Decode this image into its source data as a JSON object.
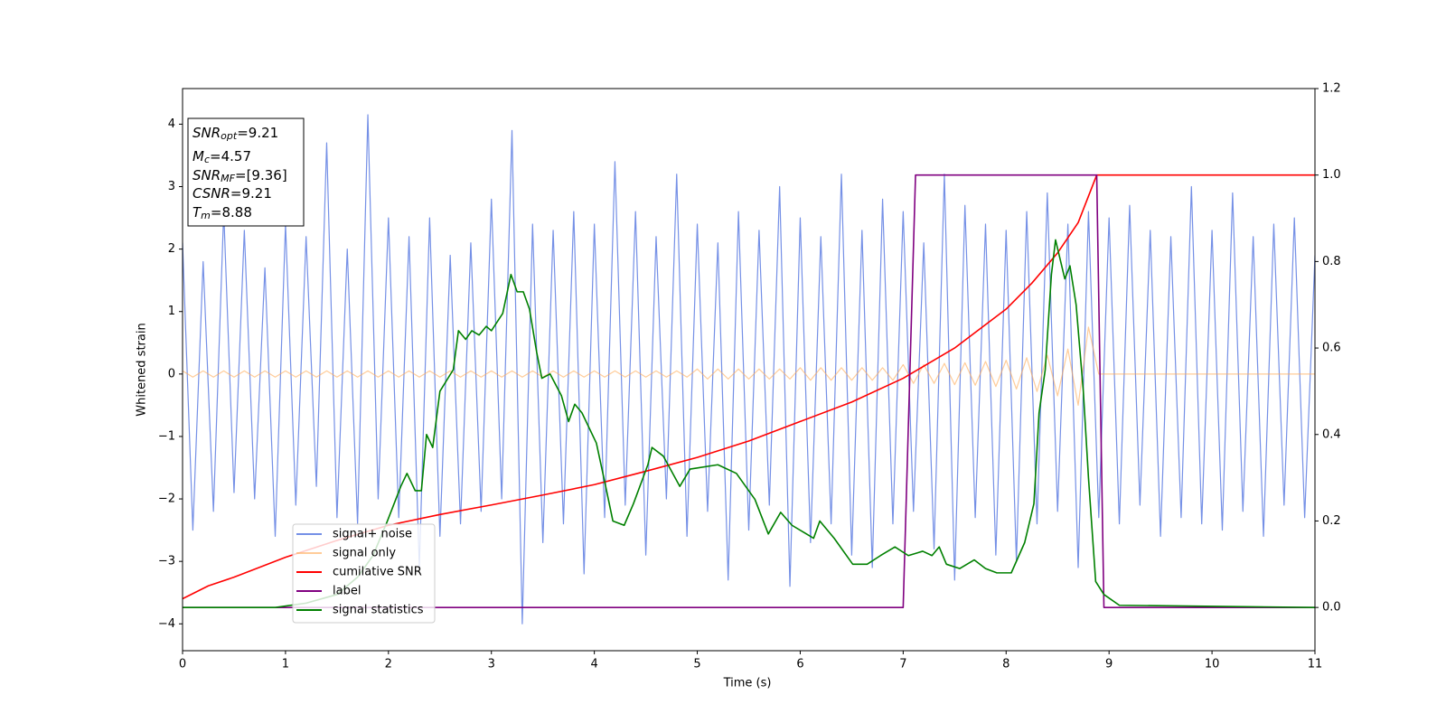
{
  "chart_data": {
    "type": "line",
    "xlabel": "Time (s)",
    "ylabel": "Whitened strain",
    "xlim": [
      0,
      11
    ],
    "xticks": [
      0,
      1,
      2,
      3,
      4,
      5,
      6,
      7,
      8,
      9,
      10,
      11
    ],
    "ylim": [
      -4.43,
      4.57
    ],
    "yticks": [
      {
        "value": -4,
        "label": "−4"
      },
      {
        "value": -3,
        "label": "−3"
      },
      {
        "value": -2,
        "label": "−2"
      },
      {
        "value": -1,
        "label": "−1"
      },
      0,
      1,
      2,
      3,
      4
    ],
    "y2lim": [
      -0.1,
      1.2
    ],
    "y2ticks": [
      {
        "value": 0,
        "label": "0.0"
      },
      0.2,
      0.4,
      0.6,
      0.8,
      {
        "value": 1,
        "label": "1.0"
      },
      1.2
    ],
    "legend": "lower left",
    "annotation": [
      {
        "symbol": "SNR",
        "subscript": "opt",
        "text": "=9.21"
      },
      {
        "symbol": "M",
        "subscript": "c",
        "text": "=4.57"
      },
      {
        "symbol": "SNR",
        "subscript": "MF",
        "text": "=[9.36]"
      },
      {
        "symbol": "CSNR",
        "text": "=9.21"
      },
      {
        "symbol": "T",
        "subscript": "m",
        "text": "=8.88"
      }
    ],
    "x": [
      0,
      0.1,
      0.2,
      0.3,
      0.4,
      0.5,
      0.6,
      0.7,
      0.8,
      0.9,
      1,
      1.1,
      1.2,
      1.3,
      1.4,
      1.5,
      1.6,
      1.7,
      1.8,
      1.9,
      2,
      2.1,
      2.2,
      2.3,
      2.4,
      2.5,
      2.6,
      2.7,
      2.8,
      2.9,
      3,
      3.1,
      3.2,
      3.3,
      3.4,
      3.5,
      3.6,
      3.7,
      3.8,
      3.9,
      4,
      4.1,
      4.2,
      4.3,
      4.4,
      4.5,
      4.6,
      4.7,
      4.8,
      4.9,
      5,
      5.1,
      5.2,
      5.3,
      5.4,
      5.5,
      5.6,
      5.7,
      5.8,
      5.9,
      6,
      6.1,
      6.2,
      6.3,
      6.4,
      6.5,
      6.6,
      6.7,
      6.8,
      6.9,
      7,
      7.1,
      7.2,
      7.3,
      7.4,
      7.5,
      7.6,
      7.7,
      7.8,
      7.9,
      8,
      8.1,
      8.2,
      8.3,
      8.4,
      8.5,
      8.6,
      8.7,
      8.8,
      8.9,
      9,
      9.1,
      9.2,
      9.3,
      9.4,
      9.5,
      9.6,
      9.7,
      9.8,
      9.9,
      10,
      10.1,
      10.2,
      10.3,
      10.4,
      10.5,
      10.6,
      10.7,
      10.8,
      10.9,
      11
    ],
    "series": [
      {
        "name": "signal+ noise",
        "color": "#7590e6",
        "values": [
          2.1,
          -2.5,
          1.8,
          -2.2,
          2.6,
          -1.9,
          2.3,
          -2.0,
          1.7,
          -2.6,
          2.4,
          -2.1,
          2.2,
          -1.8,
          3.7,
          -2.3,
          2.0,
          -2.4,
          4.15,
          -2.0,
          2.5,
          -2.3,
          2.2,
          -3.1,
          2.5,
          -2.6,
          1.9,
          -2.4,
          2.1,
          -2.2,
          2.8,
          -2.0,
          3.9,
          -4.0,
          2.4,
          -2.7,
          2.3,
          -2.4,
          2.6,
          -3.2,
          2.4,
          -2.3,
          3.4,
          -2.1,
          2.6,
          -2.9,
          2.2,
          -2.0,
          3.2,
          -2.6,
          2.4,
          -2.2,
          2.1,
          -3.3,
          2.6,
          -2.5,
          2.3,
          -2.1,
          3.0,
          -3.4,
          2.5,
          -2.7,
          2.2,
          -2.4,
          3.2,
          -2.9,
          2.3,
          -3.1,
          2.8,
          -2.4,
          2.6,
          -2.2,
          2.1,
          -2.8,
          3.2,
          -3.3,
          2.7,
          -2.3,
          2.4,
          -2.9,
          2.3,
          -3.0,
          2.6,
          -2.4,
          2.9,
          -2.2,
          2.4,
          -3.1,
          2.6,
          -2.3,
          2.5,
          -2.4,
          2.7,
          -2.1,
          2.3,
          -2.6,
          2.2,
          -2.3,
          3.0,
          -2.4,
          2.3,
          -2.5,
          2.9,
          -2.2,
          2.2,
          -2.6,
          2.4,
          -2.1,
          2.5,
          -2.3,
          1.9
        ]
      },
      {
        "name": "signal only",
        "color": "#ffaa55",
        "values": [
          0.05,
          -0.05,
          0.05,
          -0.05,
          0.05,
          -0.05,
          0.05,
          -0.05,
          0.05,
          -0.05,
          0.05,
          -0.05,
          0.05,
          -0.05,
          0.05,
          -0.05,
          0.05,
          -0.05,
          0.05,
          -0.05,
          0.05,
          -0.05,
          0.05,
          -0.05,
          0.05,
          -0.05,
          0.05,
          -0.05,
          0.05,
          -0.05,
          0.05,
          -0.05,
          0.05,
          -0.05,
          0.05,
          -0.05,
          0.05,
          -0.05,
          0.05,
          -0.05,
          0.05,
          -0.05,
          0.05,
          -0.05,
          0.05,
          -0.05,
          0.05,
          -0.05,
          0.05,
          -0.05,
          0.08,
          -0.08,
          0.08,
          -0.08,
          0.08,
          -0.08,
          0.08,
          -0.08,
          0.08,
          -0.08,
          0.1,
          -0.1,
          0.1,
          -0.1,
          0.1,
          -0.1,
          0.1,
          -0.1,
          0.1,
          -0.1,
          0.15,
          -0.15,
          0.15,
          -0.15,
          0.17,
          -0.17,
          0.18,
          -0.18,
          0.2,
          -0.2,
          0.22,
          -0.24,
          0.26,
          -0.28,
          0.3,
          -0.35,
          0.4,
          -0.5,
          0.75,
          0,
          0,
          0,
          0,
          0,
          0,
          0,
          0,
          0,
          0,
          0,
          0,
          0,
          0,
          0,
          0,
          0,
          0,
          0,
          0,
          0,
          0
        ]
      },
      {
        "name": "cumilative SNR",
        "color": "#ff0000",
        "axis": "y2",
        "x": [
          0,
          0.25,
          0.5,
          1,
          1.5,
          2,
          2.5,
          3,
          3.5,
          4,
          4.5,
          5,
          5.5,
          6,
          6.5,
          7,
          7.5,
          8,
          8.25,
          8.5,
          8.7,
          8.88,
          11
        ],
        "values": [
          0.02,
          0.05,
          0.07,
          0.116,
          0.155,
          0.19,
          0.215,
          0.237,
          0.26,
          0.284,
          0.315,
          0.347,
          0.385,
          0.43,
          0.475,
          0.53,
          0.6,
          0.69,
          0.75,
          0.82,
          0.89,
          1.0,
          1.0
        ]
      },
      {
        "name": "label",
        "color": "#800080",
        "axis": "y2",
        "x": [
          0,
          7.0,
          7.12,
          8.88,
          8.95,
          11
        ],
        "values": [
          0,
          0,
          1,
          1,
          0,
          0
        ]
      },
      {
        "name": "signal statistics",
        "color": "#008000",
        "axis": "y2",
        "x": [
          0,
          0.9,
          1.2,
          1.5,
          1.7,
          1.85,
          1.99,
          2.12,
          2.18,
          2.26,
          2.32,
          2.37,
          2.43,
          2.5,
          2.63,
          2.68,
          2.75,
          2.81,
          2.88,
          2.95,
          3.0,
          3.11,
          3.19,
          3.25,
          3.31,
          3.37,
          3.44,
          3.49,
          3.57,
          3.68,
          3.75,
          3.81,
          3.88,
          4.02,
          4.11,
          4.18,
          4.29,
          4.38,
          4.52,
          4.56,
          4.67,
          4.83,
          4.93,
          5.2,
          5.38,
          5.56,
          5.69,
          5.81,
          5.92,
          6.13,
          6.19,
          6.33,
          6.51,
          6.65,
          6.78,
          6.92,
          7.05,
          7.19,
          7.28,
          7.35,
          7.42,
          7.55,
          7.69,
          7.8,
          7.91,
          8.05,
          8.18,
          8.27,
          8.32,
          8.38,
          8.44,
          8.48,
          8.57,
          8.62,
          8.68,
          8.75,
          8.8,
          8.87,
          8.95,
          9.1,
          11
        ],
        "values": [
          0,
          0,
          0.01,
          0.03,
          0.07,
          0.12,
          0.2,
          0.28,
          0.31,
          0.27,
          0.27,
          0.4,
          0.37,
          0.5,
          0.55,
          0.64,
          0.62,
          0.64,
          0.63,
          0.65,
          0.64,
          0.68,
          0.77,
          0.73,
          0.73,
          0.69,
          0.59,
          0.53,
          0.54,
          0.49,
          0.43,
          0.47,
          0.45,
          0.38,
          0.28,
          0.2,
          0.19,
          0.24,
          0.33,
          0.37,
          0.35,
          0.28,
          0.32,
          0.33,
          0.31,
          0.25,
          0.17,
          0.22,
          0.19,
          0.16,
          0.2,
          0.16,
          0.1,
          0.1,
          0.12,
          0.14,
          0.12,
          0.13,
          0.12,
          0.14,
          0.1,
          0.09,
          0.11,
          0.09,
          0.08,
          0.08,
          0.15,
          0.24,
          0.45,
          0.55,
          0.77,
          0.85,
          0.76,
          0.79,
          0.7,
          0.5,
          0.3,
          0.06,
          0.03,
          0.005,
          0
        ]
      }
    ]
  }
}
